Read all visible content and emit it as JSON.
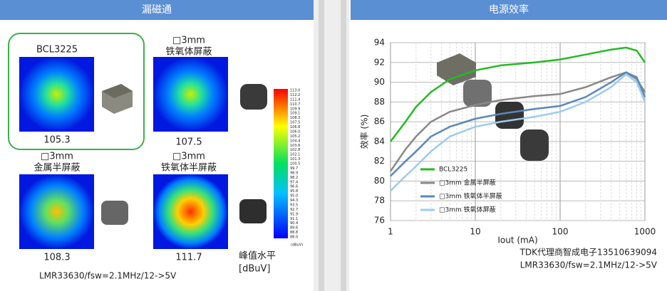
{
  "panel_left": {
    "header": "漏磁通",
    "items": [
      {
        "title": [
          "BCL3225"
        ],
        "value": 105.3
      },
      {
        "title": [
          "□3mm",
          "铁氧体屏蔽"
        ],
        "value": 107.5
      },
      {
        "title": [
          "□3mm",
          "金属半屏蔽"
        ],
        "value": 108.3
      },
      {
        "title": [
          "□3mm",
          "铁氧体半屏蔽"
        ],
        "value": 111.7
      }
    ],
    "colorbar": {
      "labels": [
        "113.0",
        "112.2",
        "111.4",
        "110.7",
        "109.9",
        "109.1",
        "108.3",
        "107.5",
        "106.8",
        "106.0",
        "105.2",
        "104.4",
        "103.6",
        "102.8",
        "102.1",
        "101.3",
        "100.5",
        "99.7",
        "98.9",
        "98.2",
        "97.4",
        "96.6",
        "95.8",
        "95.0",
        "94.3",
        "93.5",
        "92.7",
        "91.9",
        "91.1",
        "90.4",
        "89.6",
        "88.8",
        "88.0"
      ],
      "unit": "(dBuV)"
    },
    "legend_title": [
      "峰值水平",
      "[dBuV]"
    ],
    "note": "LMR33630/fsw=2.1MHz/12->5V"
  },
  "chart_data": {
    "type": "line",
    "header": "电源效率",
    "x_label": "Iout (mA)",
    "y_label": "效率 (%)",
    "x": [
      1,
      1.5,
      2,
      3,
      5,
      10,
      20,
      50,
      100,
      200,
      400,
      600,
      800,
      1000
    ],
    "series": [
      {
        "name": "BCL3225",
        "color": "#22bb22",
        "values": [
          84,
          86,
          87.5,
          89,
          90.3,
          91.2,
          91.7,
          92,
          92.3,
          92.8,
          93.3,
          93.5,
          93.2,
          92
        ]
      },
      {
        "name": "□3mm 金属半屏蔽",
        "color": "#888888",
        "values": [
          81,
          83.2,
          84.5,
          86,
          87,
          87.7,
          88.2,
          88.6,
          88.8,
          89.5,
          90.5,
          91,
          90.3,
          89
        ]
      },
      {
        "name": "□3mm 铁氧体半屏蔽",
        "color": "#5a88b8",
        "values": [
          80.5,
          82,
          83,
          84.5,
          85.5,
          86.3,
          86.8,
          87.3,
          87.6,
          88.5,
          90,
          91,
          90.5,
          88.5
        ]
      },
      {
        "name": "□3mm 铁氧体屏蔽",
        "color": "#9ecbef",
        "values": [
          79,
          80.5,
          81.5,
          83,
          84.5,
          85.5,
          86,
          86.5,
          87,
          88,
          89.5,
          90.8,
          90,
          88
        ]
      }
    ],
    "xlim": [
      1,
      1000
    ],
    "xticks": [
      1,
      10,
      100,
      1000
    ],
    "log_x": true,
    "ylim": [
      76,
      94
    ],
    "yticks": [
      76,
      78,
      80,
      82,
      84,
      86,
      88,
      90,
      92,
      94
    ],
    "grid": true,
    "annotations": [
      "TDK代理商智成电子13510639094",
      "LMR33630/fsw=2.1MHz/12->5V"
    ]
  }
}
